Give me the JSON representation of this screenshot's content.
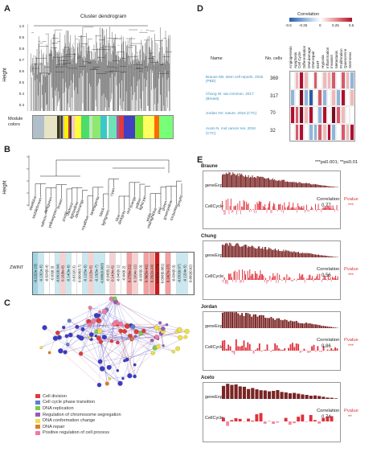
{
  "panels": {
    "A": {
      "label": "A",
      "title": "Cluster dendrogram",
      "ylabel": "Height",
      "yticks": [
        "1.0",
        "0.9",
        "0.8",
        "0.7",
        "0.6",
        "0.5",
        "0.4",
        "0.3"
      ],
      "rowlabel": "Module colors",
      "module_colors": [
        "#b0bfc9",
        "#e8e3c5",
        "#2e3a2a",
        "#8a6f3a",
        "#3a3a3a",
        "#bfbfbf",
        "#fff200",
        "#b23a3a",
        "#3a3a3a",
        "#f7c6d2",
        "#ffff3a",
        "#4bdc6b",
        "#bde8b5",
        "#8fe870",
        "#3ac8c8",
        "#ffffff",
        "#6fe0b8",
        "#9d5ba7",
        "#e23a3a",
        "#4040c0",
        "#70e030",
        "#ffff60",
        "#ff6a00",
        "#78ff78"
      ]
    },
    "B": {
      "label": "B",
      "ylabel": "Height",
      "rowlabel": "ZWINT",
      "leaves": [
        "steelblue",
        "saddlebrown",
        "salmon",
        "darkgreen",
        "yellowgreen",
        "brown",
        "purple",
        "darkred",
        "lightyellow",
        "darkorange",
        "royalblue",
        "tan",
        "magenta",
        "black",
        "lightgreen",
        "cyan",
        "blue",
        "darkgrey",
        "red",
        "orange",
        "yellow",
        "lightcyan",
        "white",
        "midnightblue",
        "pink",
        "green",
        "greenyellow",
        "turquoise",
        "grey60"
      ],
      "values": [
        "-0.22(2e-13)",
        "-0.13(1e-5)",
        "-0.024(0.4)",
        "-0.03(0.3)",
        "-0.061(0.04)",
        "0.16(8e-8)",
        "-0.14(3e-6)",
        "0.031(0.3)",
        "0.0098(0.7)",
        "-0.12(5e-5)",
        "0.12(3e-5)",
        "-0.15(5e-7)",
        "-0.086(0.003)",
        "-0.048(0.1)",
        "0.14(4e-6)",
        "-0.046(0.1)",
        "-0.04(0.2)",
        "0.27(6e-21)",
        "0.19(4e-11)",
        "-0.033(0.3)",
        "0.38(5e-41)",
        "0.29(2e-24)",
        "0.83(5e-273)",
        "0.098(0.001)",
        "0.24(7e-17)",
        "-0.034(0.3)",
        "-0.053(0.07)",
        "-0.12(4e-5)",
        "0.069(0.02)"
      ]
    },
    "C": {
      "label": "C",
      "legend": [
        {
          "text": "Cell division",
          "color": "#e23a3a"
        },
        {
          "text": "Cell cycle phase transition",
          "color": "#5a7fd0"
        },
        {
          "text": "DNA replication",
          "color": "#7ec850"
        },
        {
          "text": "Regulation of chromosome segregation",
          "color": "#9b59b6"
        },
        {
          "text": "DNA conformation change",
          "color": "#f0e040"
        },
        {
          "text": "DNA repair",
          "color": "#e07b2a"
        },
        {
          "text": "Positive regulation of cell process",
          "color": "#f07aa0"
        }
      ]
    },
    "D": {
      "label": "D",
      "legend_title": "Correlation",
      "legend_ticks": [
        "-0.5",
        "-0.25",
        "0",
        "0.25",
        "0.5"
      ],
      "col_header_name": "Name",
      "col_header_cells": "No. cells",
      "columns": [
        "Angiogenesis",
        "Apoptosis",
        "Cell Cycle",
        "Differentiation",
        "DNAdamage",
        "DNArepair",
        "EMT",
        "Hypoxia",
        "Inflammation",
        "Invasion",
        "Metastasis",
        "Proliferation",
        "Quiescence",
        "Stemness"
      ],
      "rows": [
        {
          "name": "Braune EB. stem cell reports. 2016 (PBD)",
          "cells": "369"
        },
        {
          "name": "Chung W. nat commun. 2017 (Breast)",
          "cells": "317"
        },
        {
          "name": "Jordan NV. nature. 2016 (CTC)",
          "cells": "70"
        },
        {
          "name": "Aceto N. mol cancer res. 2018 (CTC)",
          "cells": "32"
        }
      ]
    },
    "E": {
      "label": "E",
      "significance_note": "***p≤0.001; **p≤0.01",
      "corr_label": "Correlation",
      "pval_label": "Pvalue",
      "gene_label": "geneExp",
      "cycle_label": "CellCycle",
      "datasets": [
        {
          "name": "Braune",
          "correlation": "0.77",
          "pvalue": "***"
        },
        {
          "name": "Chung",
          "correlation": "0.56",
          "pvalue": "***"
        },
        {
          "name": "Jordan",
          "correlation": "0.86",
          "pvalue": "***"
        },
        {
          "name": "Aceto",
          "correlation": "0.74",
          "pvalue": "**"
        }
      ]
    }
  }
}
